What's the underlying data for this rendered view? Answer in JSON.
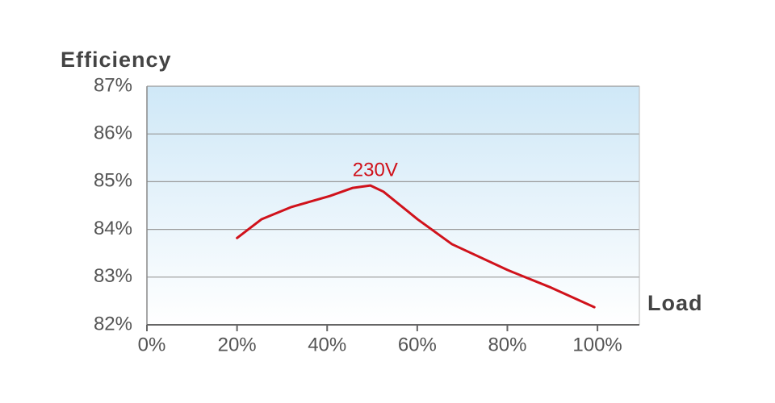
{
  "chart_data": {
    "type": "line",
    "y_label": "Efficiency",
    "x_label": "Load",
    "x": [
      20,
      25.4,
      32.1,
      40.6,
      45.7,
      49.6,
      52.5,
      60.1,
      67.7,
      80,
      89.7,
      99.3
    ],
    "series": [
      {
        "name": "230V",
        "color": "#d0121b",
        "values": [
          83.82,
          84.21,
          84.47,
          84.7,
          84.87,
          84.92,
          84.79,
          84.21,
          83.69,
          83.15,
          82.78,
          82.37
        ]
      }
    ],
    "xlim": [
      0,
      109.3
    ],
    "xticks": [
      {
        "value": 0,
        "label": "0%"
      },
      {
        "value": 20,
        "label": "20%"
      },
      {
        "value": 40,
        "label": "40%"
      },
      {
        "value": 60,
        "label": "60%"
      },
      {
        "value": 80,
        "label": "80%"
      },
      {
        "value": 100,
        "label": "100%"
      }
    ],
    "ylim": [
      82,
      87
    ],
    "yticks": [
      {
        "value": 82,
        "label": "82%"
      },
      {
        "value": 83,
        "label": "83%"
      },
      {
        "value": 84,
        "label": "84%"
      },
      {
        "value": 85,
        "label": "85%"
      },
      {
        "value": 86,
        "label": "86%"
      },
      {
        "value": 87,
        "label": "87%"
      }
    ],
    "grid": true
  }
}
